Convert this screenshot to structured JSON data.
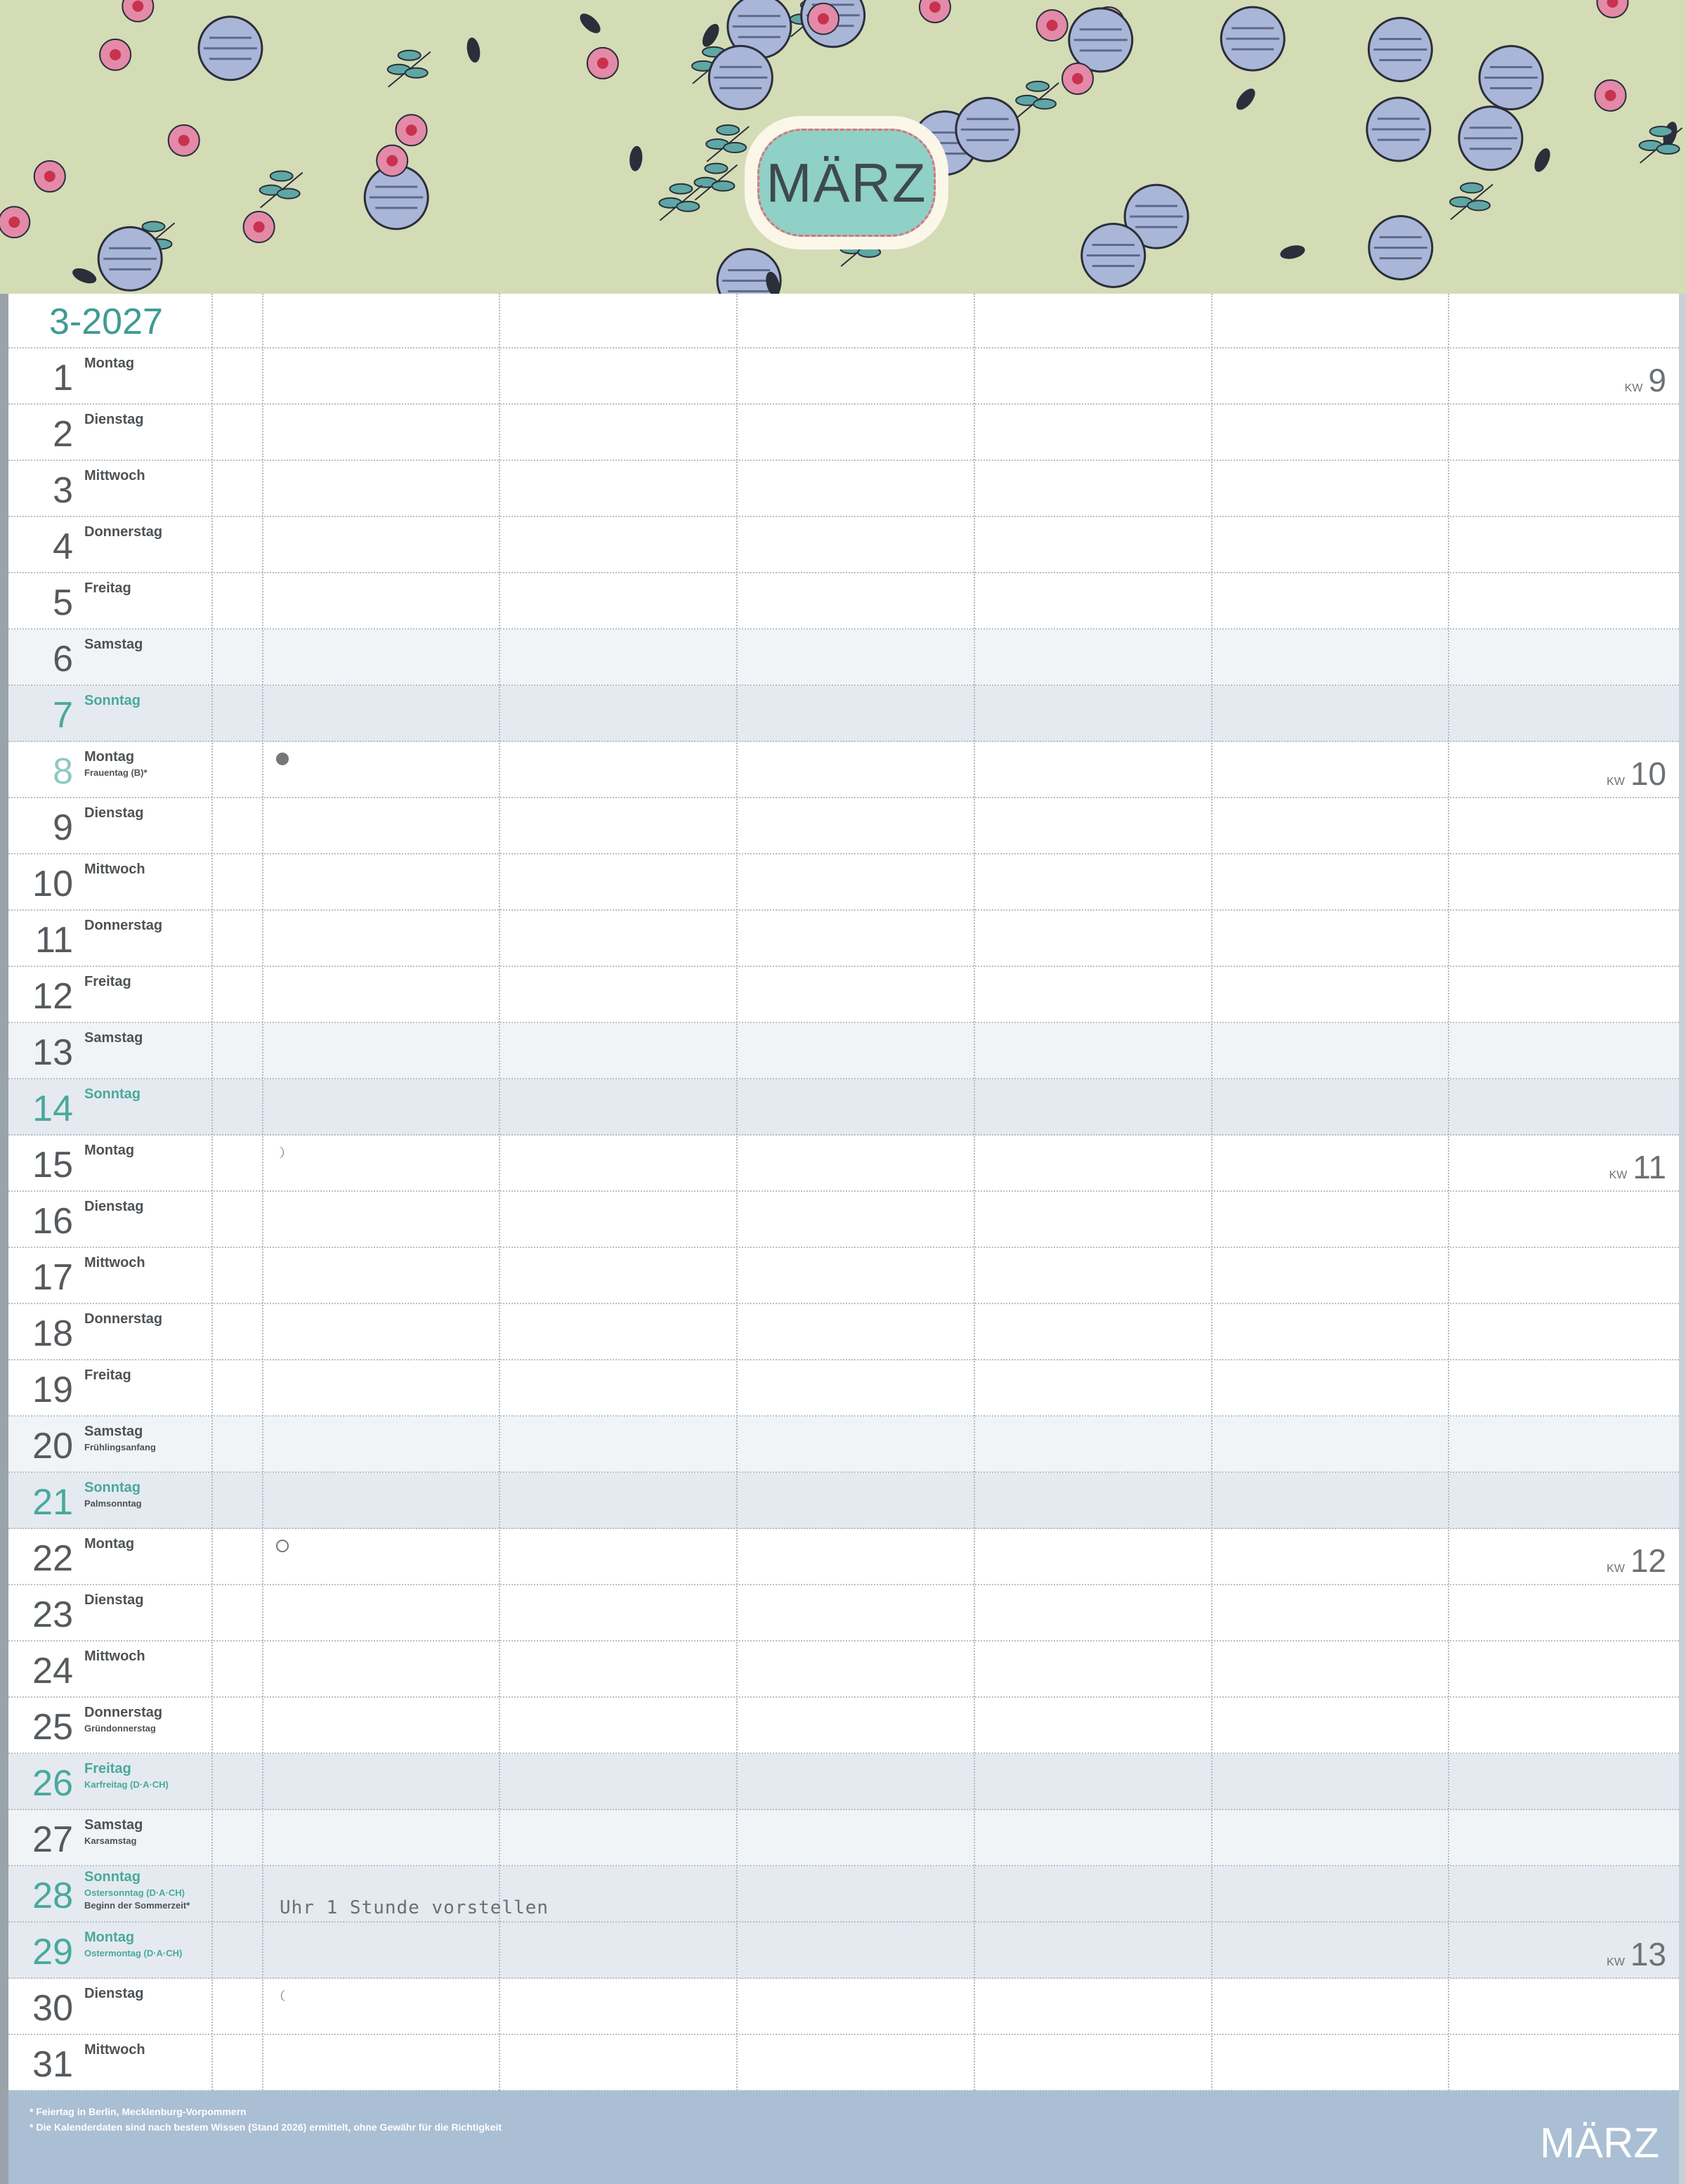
{
  "header": {
    "month_title": "MÄRZ"
  },
  "calendar": {
    "year_label": "3-2027",
    "kw_label": "KW",
    "colors": {
      "accent": "#4aa89d",
      "banner": "#d4dcb6",
      "footer": "#aabfd4",
      "weekend": "#f1f4f7",
      "sunday": "#e4eaf0"
    },
    "days": [
      {
        "num": "1",
        "weekday": "Montag",
        "type": "wd",
        "kw": "9"
      },
      {
        "num": "2",
        "weekday": "Dienstag",
        "type": "wd"
      },
      {
        "num": "3",
        "weekday": "Mittwoch",
        "type": "wd"
      },
      {
        "num": "4",
        "weekday": "Donnerstag",
        "type": "wd"
      },
      {
        "num": "5",
        "weekday": "Freitag",
        "type": "wd"
      },
      {
        "num": "6",
        "weekday": "Samstag",
        "type": "sat"
      },
      {
        "num": "7",
        "weekday": "Sonntag",
        "type": "sun"
      },
      {
        "num": "8",
        "weekday": "Montag",
        "type": "wd",
        "holidays": [
          "Frauentag (B)*"
        ],
        "kw": "10",
        "moon": "new-moon-icon",
        "light_number": true
      },
      {
        "num": "9",
        "weekday": "Dienstag",
        "type": "wd"
      },
      {
        "num": "10",
        "weekday": "Mittwoch",
        "type": "wd"
      },
      {
        "num": "11",
        "weekday": "Donnerstag",
        "type": "wd"
      },
      {
        "num": "12",
        "weekday": "Freitag",
        "type": "wd"
      },
      {
        "num": "13",
        "weekday": "Samstag",
        "type": "sat"
      },
      {
        "num": "14",
        "weekday": "Sonntag",
        "type": "sun"
      },
      {
        "num": "15",
        "weekday": "Montag",
        "type": "wd",
        "kw": "11",
        "moon": "first-quarter-moon-icon"
      },
      {
        "num": "16",
        "weekday": "Dienstag",
        "type": "wd"
      },
      {
        "num": "17",
        "weekday": "Mittwoch",
        "type": "wd"
      },
      {
        "num": "18",
        "weekday": "Donnerstag",
        "type": "wd"
      },
      {
        "num": "19",
        "weekday": "Freitag",
        "type": "wd"
      },
      {
        "num": "20",
        "weekday": "Samstag",
        "type": "sat",
        "holidays": [
          "Frühlingsanfang"
        ]
      },
      {
        "num": "21",
        "weekday": "Sonntag",
        "type": "sun",
        "holidays": [
          "Palmsonntag"
        ]
      },
      {
        "num": "22",
        "weekday": "Montag",
        "type": "wd",
        "kw": "12",
        "moon": "full-moon-icon"
      },
      {
        "num": "23",
        "weekday": "Dienstag",
        "type": "wd"
      },
      {
        "num": "24",
        "weekday": "Mittwoch",
        "type": "wd"
      },
      {
        "num": "25",
        "weekday": "Donnerstag",
        "type": "wd",
        "holidays": [
          "Gründonnerstag"
        ]
      },
      {
        "num": "26",
        "weekday": "Freitag",
        "type": "sun",
        "holidays": [
          "Karfreitag (D·A·CH)"
        ],
        "teal_holiday": true
      },
      {
        "num": "27",
        "weekday": "Samstag",
        "type": "sat",
        "holidays": [
          "Karsamstag"
        ]
      },
      {
        "num": "28",
        "weekday": "Sonntag",
        "type": "sun",
        "holidays": [
          "Ostersonntag (D·A·CH)",
          "Beginn der Sommerzeit*"
        ],
        "teal_holiday": true
      },
      {
        "num": "29",
        "weekday": "Montag",
        "type": "sun",
        "holidays": [
          "Ostermontag (D·A·CH)"
        ],
        "kw": "13",
        "teal_holiday": true
      },
      {
        "num": "30",
        "weekday": "Dienstag",
        "type": "wd",
        "moon": "last-quarter-moon-icon"
      },
      {
        "num": "31",
        "weekday": "Mittwoch",
        "type": "wd"
      }
    ],
    "note": "Uhr 1 Stunde vorstellen"
  },
  "footer": {
    "footnotes": [
      "* Feiertag in Berlin, Mecklenburg-Vorpommern",
      "* Die Kalenderdaten sind nach bestem Wissen (Stand 2026) ermittelt, ohne Gewähr für die Richtigkeit"
    ],
    "month": "MÄRZ"
  }
}
